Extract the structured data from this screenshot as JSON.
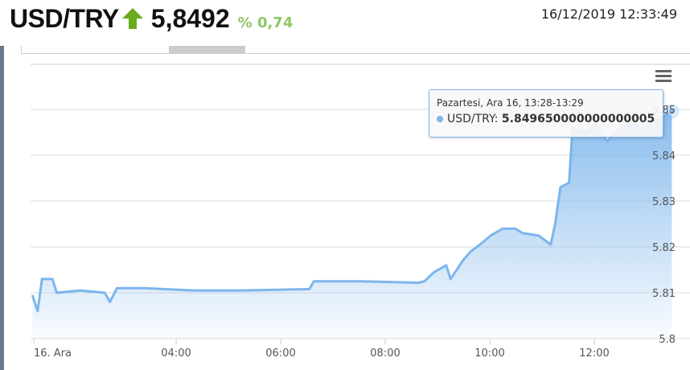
{
  "header": {
    "symbol": "USD/TRY",
    "trend_icon": "arrow-up-icon",
    "trend_color": "#6aaa1e",
    "price": "5,8492",
    "change": "% 0,74",
    "datetime": "16/12/2019 12:33:49"
  },
  "tooltip": {
    "title": "Pazartesi, Ara 16, 13:28-13:29",
    "series": "USD/TRY:",
    "value": "5.849650000000000005"
  },
  "chart_data": {
    "type": "area",
    "series": [
      {
        "name": "USD/TRY",
        "color": "#7cb5ec",
        "points": [
          [
            "01:15",
            5.8095
          ],
          [
            "01:21",
            5.806
          ],
          [
            "01:26",
            5.813
          ],
          [
            "01:38",
            5.813
          ],
          [
            "01:43",
            5.81
          ],
          [
            "02:10",
            5.8105
          ],
          [
            "02:38",
            5.81
          ],
          [
            "02:44",
            5.808
          ],
          [
            "02:52",
            5.811
          ],
          [
            "03:24",
            5.811
          ],
          [
            "04:19",
            5.8105
          ],
          [
            "05:15",
            5.8105
          ],
          [
            "06:33",
            5.8108
          ],
          [
            "06:38",
            5.8125
          ],
          [
            "07:33",
            5.8125
          ],
          [
            "08:38",
            5.8122
          ],
          [
            "08:45",
            5.8125
          ],
          [
            "08:56",
            5.8145
          ],
          [
            "09:10",
            5.816
          ],
          [
            "09:15",
            5.813
          ],
          [
            "09:29",
            5.817
          ],
          [
            "09:38",
            5.819
          ],
          [
            "09:52",
            5.821
          ],
          [
            "10:01",
            5.8225
          ],
          [
            "10:15",
            5.824
          ],
          [
            "10:29",
            5.824
          ],
          [
            "10:38",
            5.823
          ],
          [
            "10:56",
            5.8225
          ],
          [
            "11:10",
            5.8205
          ],
          [
            "11:15",
            5.825
          ],
          [
            "11:21",
            5.833
          ],
          [
            "11:31",
            5.834
          ],
          [
            "11:35",
            5.846
          ],
          [
            "11:52",
            5.845
          ],
          [
            "12:01",
            5.847
          ],
          [
            "12:15",
            5.843
          ],
          [
            "12:24",
            5.845
          ],
          [
            "12:38",
            5.847
          ],
          [
            "12:56",
            5.846
          ],
          [
            "13:15",
            5.848
          ],
          [
            "13:29",
            5.8496
          ]
        ]
      }
    ],
    "x_ticks": [
      "16. Ara",
      "04:00",
      "06:00",
      "08:00",
      "10:00",
      "12:00"
    ],
    "y_ticks": [
      "5.8",
      "5.81",
      "5.82",
      "5.83",
      "5.84",
      "5.85"
    ],
    "ylim": [
      5.8,
      5.85
    ],
    "grid": true,
    "legend": "none"
  }
}
